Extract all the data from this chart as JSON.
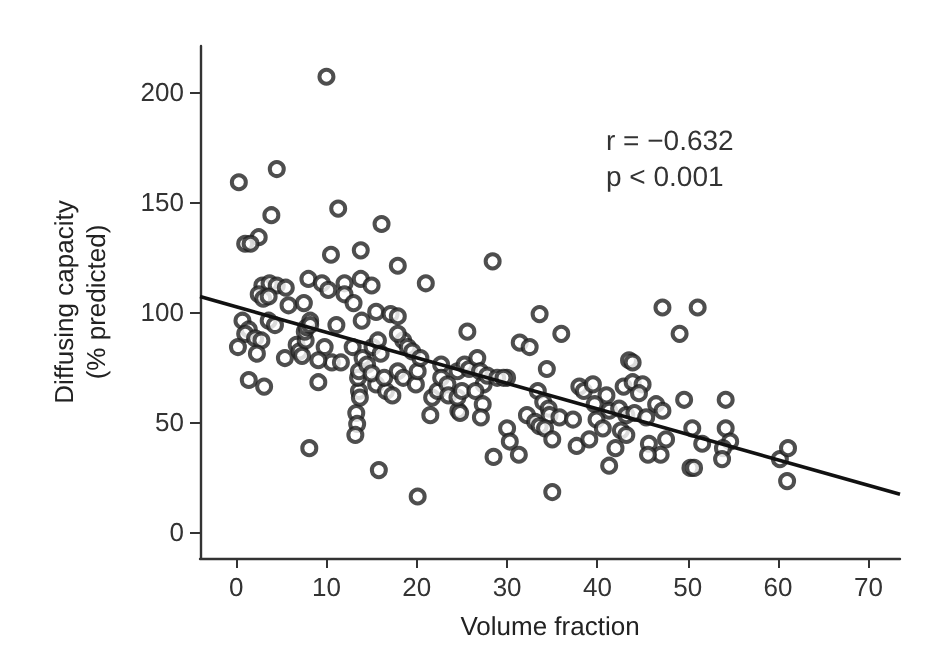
{
  "chart_data": {
    "type": "scatter",
    "xlabel": "Volume fraction",
    "ylabel": "Diffusing capacity\n(% predicted)",
    "xlim": [
      -4,
      73.5
    ],
    "ylim": [
      -12,
      221
    ],
    "xticks": [
      0,
      10,
      20,
      30,
      40,
      50,
      60,
      70
    ],
    "yticks": [
      0,
      50,
      100,
      150,
      200
    ],
    "grid": false,
    "annotations": [
      "r = −0.632",
      "p < 0.001"
    ],
    "series": [
      {
        "marker": "circle",
        "color": "#222222",
        "x": [
          10.0,
          0.3,
          4.5,
          3.9,
          11.3,
          2.5,
          1.0,
          1.6,
          16.1,
          10.5,
          13.8,
          17.9,
          28.4,
          21.0,
          2.9,
          3.7,
          4.5,
          5.5,
          2.5,
          3.0,
          3.6,
          8.0,
          9.5,
          10.2,
          12.0,
          12.0,
          13.8,
          15.0,
          5.8,
          7.5,
          13.0,
          13.9,
          15.5,
          17.1,
          17.9,
          25.6,
          0.7,
          1.4,
          1.0,
          0.2,
          2.1,
          2.8,
          2.3,
          1.4,
          3.1,
          3.6,
          4.3,
          5.4,
          6.7,
          7.0,
          7.3,
          7.7,
          7.6,
          7.8,
          8.2,
          8.2,
          8.1,
          9.1,
          9.8,
          10.6,
          9.1,
          11.1,
          11.6,
          12.9,
          13.3,
          13.4,
          13.2,
          13.6,
          13.7,
          13.5,
          13.6,
          14.0,
          14.5,
          15.1,
          15.7,
          16.0,
          15.5,
          15.0,
          15.8,
          16.6,
          17.3,
          16.4,
          17.9,
          18.5,
          18.5,
          17.9,
          19.0,
          19.5,
          19.9,
          20.1,
          20.1,
          20.4,
          21.5,
          21.7,
          22.3,
          22.7,
          22.7,
          23.4,
          23.5,
          24.6,
          24.8,
          24.5,
          25.0,
          24.5,
          25.3,
          25.8,
          26.7,
          27.0,
          27.4,
          26.5,
          27.3,
          27.1,
          28.5,
          30.0,
          30.0,
          30.3,
          31.3,
          31.4,
          47.2,
          51.1,
          33.6,
          36.0,
          49.1,
          32.5,
          27.8,
          28.9,
          29.6,
          34.4,
          43.5,
          43.9,
          33.4,
          38.0,
          38.5,
          39.5,
          41.0,
          42.9,
          43.9,
          45.0,
          44.6,
          34.0,
          34.6,
          34.7,
          32.2,
          33.1,
          33.6,
          34.2,
          35.8,
          37.3,
          39.7,
          41.3,
          39.9,
          40.6,
          42.4,
          43.2,
          44.1,
          45.4,
          42.6,
          43.2,
          42.0,
          41.3,
          46.5,
          47.2,
          47.6,
          45.7,
          47.0,
          45.6,
          35.0,
          37.7,
          39.1,
          35.0,
          49.6,
          50.5,
          51.6,
          50.3,
          50.7,
          54.2,
          54.2,
          54.7,
          53.9,
          53.8,
          60.2,
          61.1,
          61.0
        ],
        "values": [
          207,
          159,
          165,
          144,
          147,
          134,
          131,
          131,
          140,
          126,
          128,
          121,
          123,
          113,
          112,
          113,
          112,
          111,
          108,
          106,
          107,
          115,
          113,
          110,
          113,
          108,
          115,
          112,
          103,
          104,
          104,
          96,
          100,
          99,
          98,
          91,
          96,
          92,
          90,
          84,
          88,
          87,
          81,
          69,
          66,
          96,
          94,
          79,
          85,
          82,
          80,
          87,
          91,
          93,
          96,
          94,
          38,
          68,
          84,
          77,
          78,
          94,
          77,
          84,
          54,
          49,
          44,
          64,
          61,
          70,
          73,
          79,
          76,
          84,
          87,
          81,
          67,
          72,
          28,
          64,
          62,
          70,
          73,
          70,
          87,
          90,
          84,
          82,
          67,
          73,
          16,
          79,
          53,
          61,
          64,
          76,
          70,
          67,
          62,
          55,
          54,
          61,
          64,
          73,
          76,
          74,
          79,
          73,
          67,
          64,
          58,
          52,
          34,
          70,
          47,
          41,
          35,
          86,
          102,
          102,
          99,
          90,
          90,
          84,
          71,
          70,
          70,
          74,
          78,
          77,
          64,
          66,
          64,
          67,
          62,
          66,
          68,
          67,
          63,
          59,
          56,
          53,
          53,
          50,
          48,
          47,
          52,
          51,
          58,
          55,
          51,
          47,
          56,
          53,
          54,
          52,
          46,
          44,
          38,
          30,
          58,
          55,
          42,
          40,
          35,
          35,
          42,
          39,
          42,
          18,
          60,
          47,
          40,
          29,
          29,
          60,
          47,
          41,
          38,
          33,
          33,
          38,
          23
        ]
      },
      {
        "type": "line",
        "marker": "none",
        "color": "#111111",
        "x": [
          -4,
          73.5
        ],
        "values": [
          107,
          17
        ]
      }
    ]
  }
}
